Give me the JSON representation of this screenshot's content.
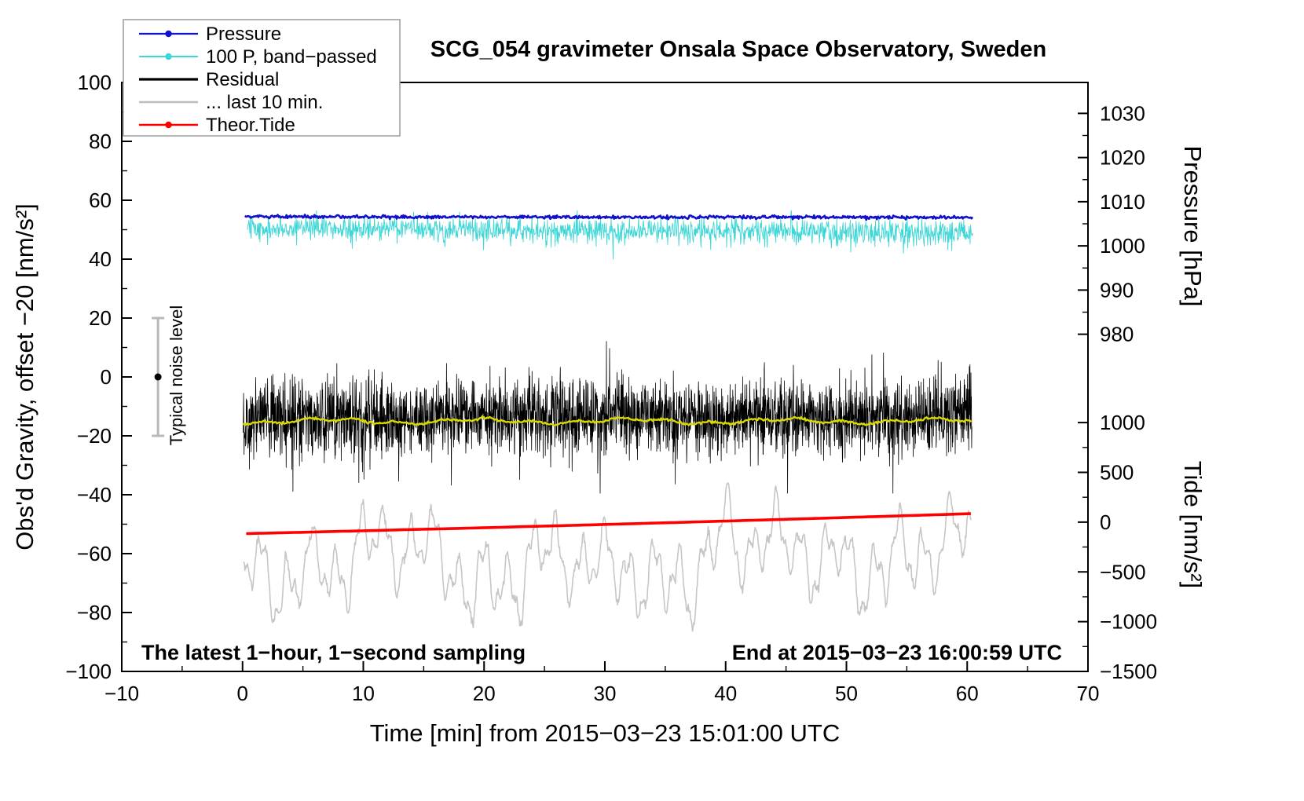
{
  "chart_data": {
    "type": "line",
    "title": "SCG_054 gravimeter Onsala Space Observatory, Sweden",
    "xlabel": "Time [min] from 2015−03−23 15:01:00 UTC",
    "ylabels": {
      "gravity": "Obs'd Gravity, offset −20 [nm/s²]",
      "pressure": "Pressure [hPa]",
      "tide": "Tide [nm/s²]"
    },
    "annotations": {
      "sampling": "The latest 1−hour, 1−second sampling",
      "end": "End at 2015−03−23 16:00:59 UTC"
    },
    "noise_bar": {
      "label": "Typical noise level",
      "x": -7,
      "center": 0,
      "half_range": 20
    },
    "legend": [
      {
        "label": "Pressure",
        "color": "#1111cc",
        "line_width": 2.2,
        "marker": true
      },
      {
        "label": "100 P, band−passed",
        "color": "#3fd6d6",
        "line_width": 2.0,
        "marker": true
      },
      {
        "label": "Residual",
        "color": "#000000",
        "line_width": 3.2,
        "marker": false
      },
      {
        "label": "... last 10 min.",
        "color": "#bdbdbd",
        "line_width": 2.6,
        "marker": false
      },
      {
        "label": "Theor.Tide",
        "color": "#ff0000",
        "line_width": 2.6,
        "marker": true
      }
    ],
    "axes": {
      "x": {
        "min": -10,
        "max": 70,
        "majors": [
          -10,
          0,
          10,
          20,
          30,
          40,
          50,
          60,
          70
        ],
        "minor_step": 5
      },
      "gravity": {
        "min": -100,
        "max": 100,
        "majors": [
          -100,
          -80,
          -60,
          -40,
          -20,
          0,
          20,
          40,
          60,
          80,
          100
        ],
        "minor_step": 10
      },
      "pressure": {
        "majors": [
          1030,
          1020,
          1010,
          1000,
          990,
          980
        ],
        "minor_step": 5,
        "g_at_1000": 44.5,
        "g_per_hpa": 1.5
      },
      "tide": {
        "majors": [
          1000,
          500,
          0,
          -500,
          -1000,
          -1500
        ],
        "minor_step": 250,
        "g_at_0": -49.3,
        "g_per_unit": 0.0338
      }
    },
    "series": [
      {
        "name": "residual-last-10-min",
        "legend_label": "... last 10 min.",
        "kind": "wander",
        "color": "#c6c6c6",
        "width": 1.6,
        "seed": 77,
        "x_start": 0.1,
        "x_end": 60.3,
        "step": 0.05,
        "base": -63,
        "amps": [
          9,
          6,
          4,
          5
        ],
        "freqs": [
          3.1,
          1.3,
          7.9,
          0.4
        ],
        "walk": 2.0,
        "damp": 0.985,
        "jitter": 0.7,
        "clamp": [
          -93,
          -36
        ]
      },
      {
        "name": "residual",
        "legend_label": "Residual",
        "kind": "noisy",
        "color": "#000000",
        "width": 0.8,
        "seed": 12,
        "x_start": 0.05,
        "x_end": 60.4,
        "step": 0.02,
        "base": -13.5,
        "slope": 0,
        "noise": 6.3,
        "spike_prob": 0.012,
        "spike_scale": 2.0,
        "spike_neg_frac": 0.5,
        "clamp": [
          -39.5,
          16.5
        ]
      },
      {
        "name": "residual-smoothed",
        "kind": "smooth",
        "color": "#d9d900",
        "width": 2.4,
        "seed": 5,
        "x_start": 0.05,
        "x_end": 60.4,
        "step": 0.1,
        "base": -15,
        "amps": [
          0.7,
          0.5
        ],
        "freqs": [
          0.5,
          1.7
        ],
        "jitter": 0.22
      },
      {
        "name": "pressure-band-passed",
        "legend_label": "100 P, band−passed",
        "kind": "noisy",
        "color": "#3fd6d6",
        "width": 0.9,
        "seed": 31,
        "x_start": 0.4,
        "x_end": 60.5,
        "step": 0.04,
        "base": 50.7,
        "slope": -0.03,
        "noise": 1.9,
        "amp_grow": 0.004,
        "spike_prob": 0.02,
        "spike_scale": 2.0,
        "spike_neg_frac": 0.75,
        "clamp": [
          40,
          56.5
        ]
      },
      {
        "name": "pressure",
        "legend_label": "Pressure",
        "kind": "noisy",
        "color": "#1111cc",
        "width": 2.6,
        "seed": 9,
        "x_start": 0.2,
        "x_end": 60.5,
        "step": 0.08,
        "base": 54.4,
        "slope": -0.004,
        "noise": 0.28,
        "mean_hpa_approx": 1006.5
      },
      {
        "name": "theoretical-tide",
        "legend_label": "Theor.Tide",
        "kind": "trend",
        "color": "#ff0000",
        "width": 3.6,
        "seed": 1,
        "x_start": 0.3,
        "x_end": 60.5,
        "step": 0.5,
        "y_start": -53.2,
        "y_end": -46.4,
        "curve": -1.0,
        "tide_nms2_start_approx": -115,
        "tide_nms2_end_approx": 86
      }
    ]
  }
}
